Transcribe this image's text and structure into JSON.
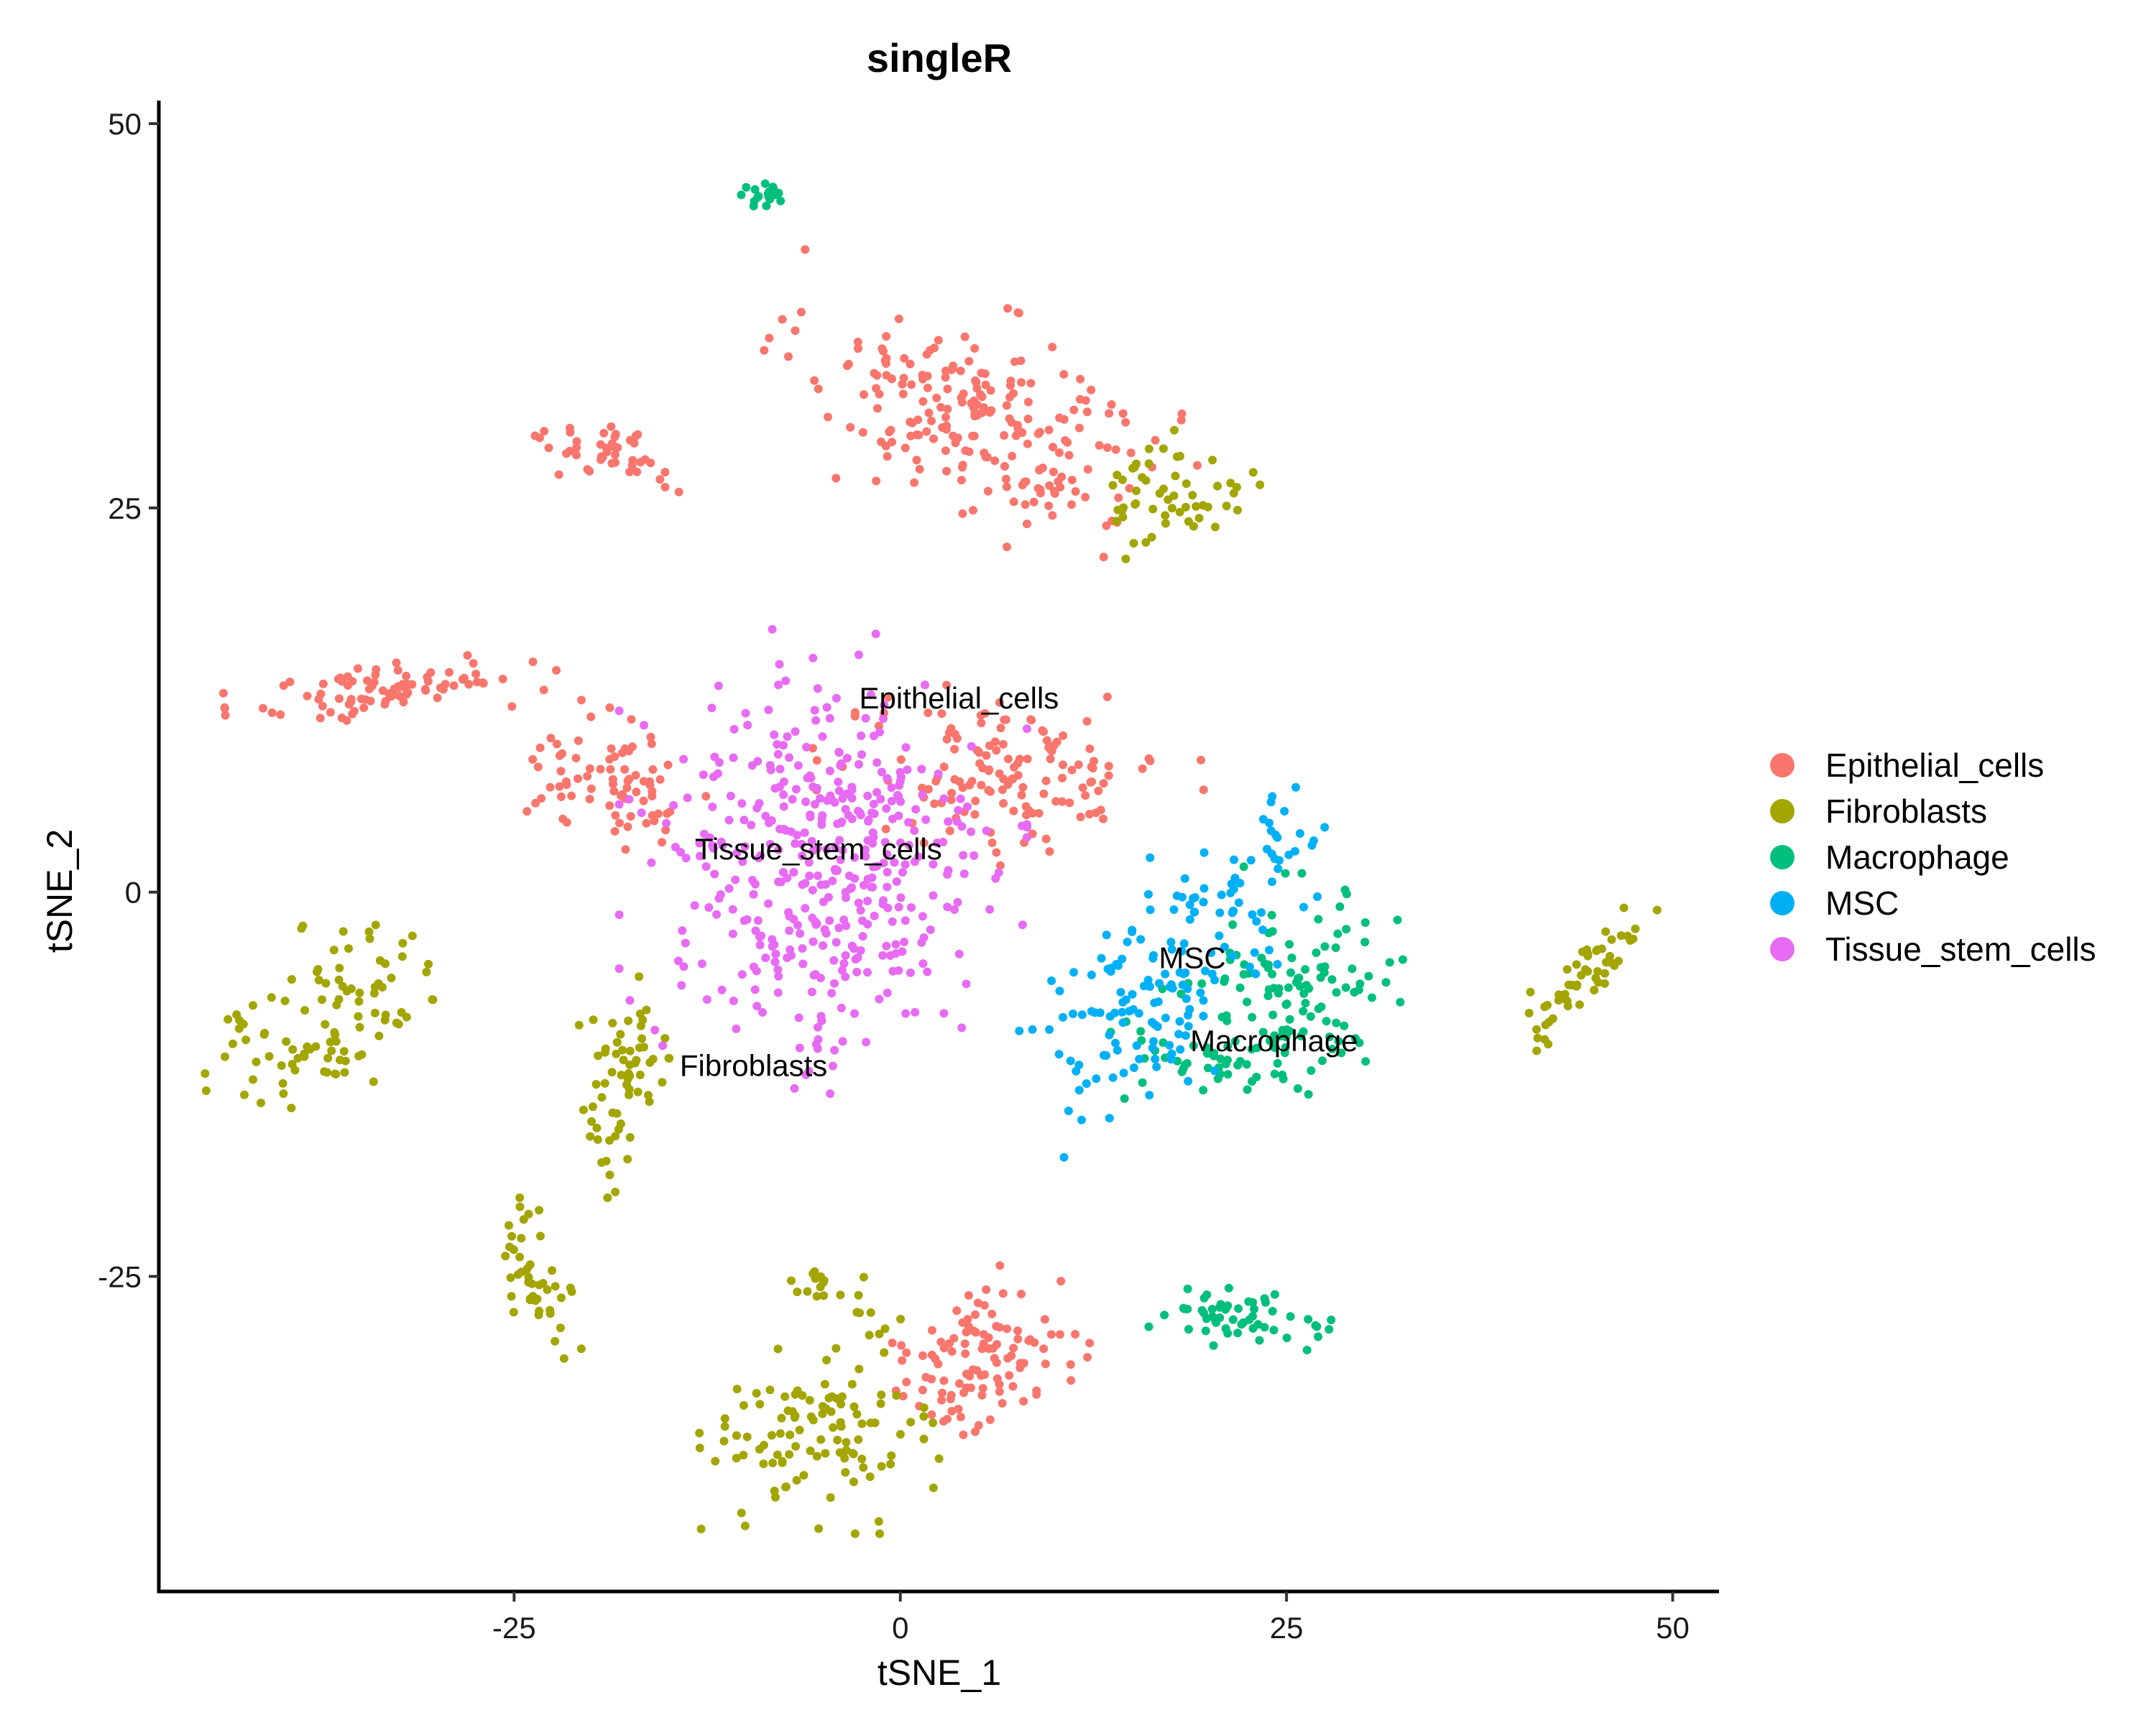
{
  "chart_data": {
    "type": "scatter",
    "title": "singleR",
    "xlabel": "tSNE_1",
    "ylabel": "tSNE_2",
    "xlim": [
      -48,
      53
    ],
    "ylim": [
      -45.5,
      51.5
    ],
    "x_ticks": [
      -25,
      0,
      25,
      50
    ],
    "y_ticks": [
      -25,
      0,
      25,
      50
    ],
    "x_tick_labels": [
      "-25",
      "0",
      "25",
      "50"
    ],
    "y_tick_labels": [
      "-25",
      "0",
      "25",
      "50"
    ],
    "grid": false,
    "legend_position": "right",
    "legend": [
      {
        "name": "Epithelial_cells",
        "color": "#F8766D"
      },
      {
        "name": "Fibroblasts",
        "color": "#A3A500"
      },
      {
        "name": "Macrophage",
        "color": "#00BF7D"
      },
      {
        "name": "MSC",
        "color": "#00B0F6"
      },
      {
        "name": "Tissue_stem_cells",
        "color": "#E76BF3"
      }
    ],
    "cluster_labels": [
      {
        "text": "Epithelial_cells",
        "x": 3.8,
        "y": 12.6
      },
      {
        "text": "Tissue_stem_cells",
        "x": -5.3,
        "y": 2.8
      },
      {
        "text": "MSC",
        "x": 18.9,
        "y": -4.3
      },
      {
        "text": "Macrophage",
        "x": 24.2,
        "y": -9.7
      },
      {
        "text": "Fibroblasts",
        "x": -9.5,
        "y": -11.3
      }
    ],
    "clusters": [
      {
        "series": "Epithelial_cells",
        "x": 5,
        "y": 31,
        "sx": 6,
        "sy": 3,
        "rot": -22,
        "n": 220
      },
      {
        "series": "Epithelial_cells",
        "x": -18.5,
        "y": 28.5,
        "sx": 2.2,
        "sy": 0.9,
        "rot": -12,
        "n": 45
      },
      {
        "series": "Epithelial_cells",
        "x": -33,
        "y": 13.2,
        "sx": 4.5,
        "sy": 0.9,
        "rot": 5,
        "n": 85
      },
      {
        "series": "Epithelial_cells",
        "x": -18.5,
        "y": 7.2,
        "sx": 3.2,
        "sy": 1.9,
        "rot": -15,
        "n": 80
      },
      {
        "series": "Epithelial_cells",
        "x": 7,
        "y": 7.8,
        "sx": 5.2,
        "sy": 2.5,
        "rot": 5,
        "n": 140
      },
      {
        "series": "Epithelial_cells",
        "x": 5,
        "y": -30.5,
        "sx": 3,
        "sy": 2,
        "rot": 28,
        "n": 110
      },
      {
        "series": "Fibroblasts",
        "x": 18,
        "y": 26,
        "sx": 2.2,
        "sy": 1.8,
        "rot": 0,
        "n": 55
      },
      {
        "series": "Fibroblasts",
        "x": -39,
        "y": -10,
        "sx": 3.2,
        "sy": 2,
        "rot": 20,
        "n": 55
      },
      {
        "series": "Fibroblasts",
        "x": -35,
        "y": -6,
        "sx": 2.5,
        "sy": 2.2,
        "rot": 40,
        "n": 45
      },
      {
        "series": "Fibroblasts",
        "x": -17.5,
        "y": -11.5,
        "sx": 1.6,
        "sy": 2.5,
        "rot": 0,
        "n": 55
      },
      {
        "series": "Fibroblasts",
        "x": -19.5,
        "y": -16.5,
        "sx": 0.6,
        "sy": 1.7,
        "rot": 20,
        "n": 10
      },
      {
        "series": "Fibroblasts",
        "x": 44.5,
        "y": -5.5,
        "sx": 2.6,
        "sy": 0.8,
        "rot": 45,
        "n": 55
      },
      {
        "series": "Fibroblasts",
        "x": -23.8,
        "y": -25.2,
        "sx": 0.9,
        "sy": 2.3,
        "rot": 18,
        "n": 45
      },
      {
        "series": "Fibroblasts",
        "x": -4.5,
        "y": -26,
        "sx": 2,
        "sy": 0.8,
        "rot": -30,
        "n": 22
      },
      {
        "series": "Fibroblasts",
        "x": -5,
        "y": -35.5,
        "sx": 3.6,
        "sy": 2.6,
        "rot": 0,
        "n": 110
      },
      {
        "series": "Macrophage",
        "x": -9,
        "y": 45.5,
        "sx": 0.6,
        "sy": 0.6,
        "rot": 0,
        "n": 20
      },
      {
        "series": "Macrophage",
        "x": 26,
        "y": -6,
        "sx": 3.2,
        "sy": 2.8,
        "rot": -30,
        "n": 110
      },
      {
        "series": "Macrophage",
        "x": 21,
        "y": -11,
        "sx": 3.8,
        "sy": 1.2,
        "rot": 0,
        "n": 50
      },
      {
        "series": "Macrophage",
        "x": 22,
        "y": -27.8,
        "sx": 3,
        "sy": 0.8,
        "rot": -8,
        "n": 55
      },
      {
        "series": "MSC",
        "x": 15.5,
        "y": -7.5,
        "sx": 3.8,
        "sy": 2.5,
        "rot": 30,
        "n": 110
      },
      {
        "series": "MSC",
        "x": 21,
        "y": -1,
        "sx": 2.5,
        "sy": 1.8,
        "rot": 0,
        "n": 40
      },
      {
        "series": "MSC",
        "x": 24.5,
        "y": 2.5,
        "sx": 1.3,
        "sy": 1.8,
        "rot": 0,
        "n": 22
      },
      {
        "series": "Tissue_stem_cells",
        "x": -5,
        "y": 1.5,
        "sx": 5.5,
        "sy": 6.5,
        "rot": 0,
        "n": 420
      }
    ]
  }
}
